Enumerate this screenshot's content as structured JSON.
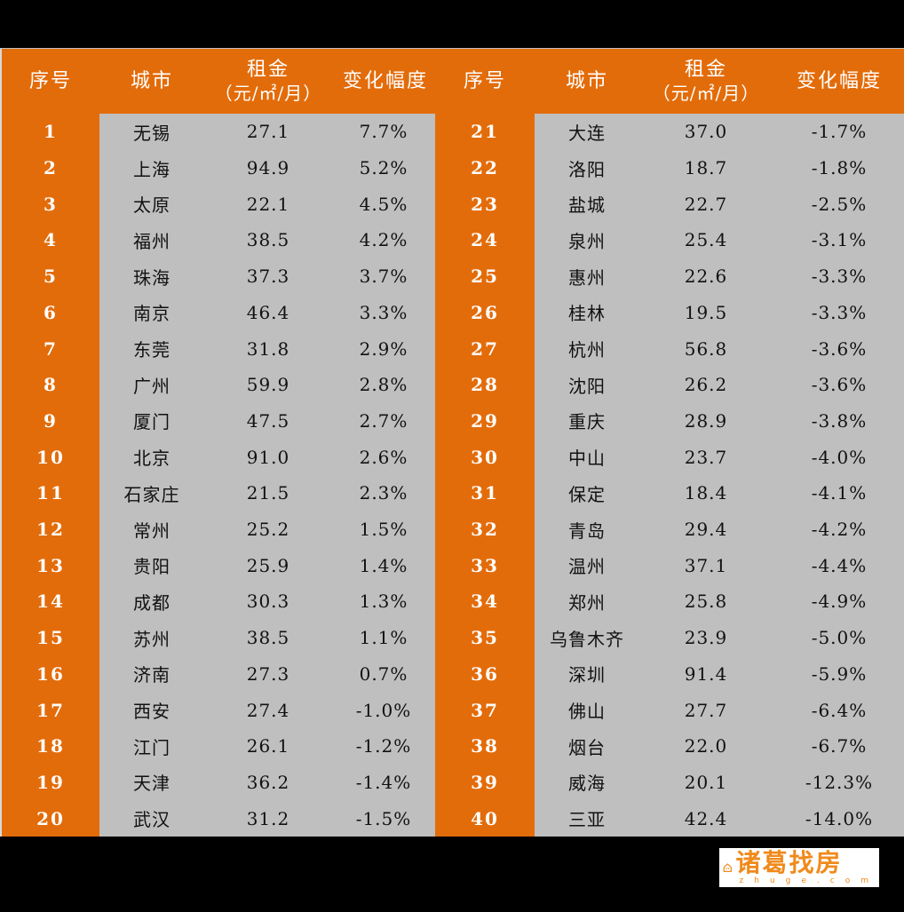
{
  "header": {
    "columns": [
      {
        "label": "序号"
      },
      {
        "label": "城市"
      },
      {
        "label": "租金",
        "sub": "（元/㎡/月）"
      },
      {
        "label": "变化幅度"
      }
    ]
  },
  "colors": {
    "accent": "#e36c0a",
    "cell_bg": "#bfbfbf",
    "background": "#000000"
  },
  "rows": [
    {
      "rank": "1",
      "city": "无锡",
      "rent": "27.1",
      "change": "7.7%"
    },
    {
      "rank": "2",
      "city": "上海",
      "rent": "94.9",
      "change": "5.2%"
    },
    {
      "rank": "3",
      "city": "太原",
      "rent": "22.1",
      "change": "4.5%"
    },
    {
      "rank": "4",
      "city": "福州",
      "rent": "38.5",
      "change": "4.2%"
    },
    {
      "rank": "5",
      "city": "珠海",
      "rent": "37.3",
      "change": "3.7%"
    },
    {
      "rank": "6",
      "city": "南京",
      "rent": "46.4",
      "change": "3.3%"
    },
    {
      "rank": "7",
      "city": "东莞",
      "rent": "31.8",
      "change": "2.9%"
    },
    {
      "rank": "8",
      "city": "广州",
      "rent": "59.9",
      "change": "2.8%"
    },
    {
      "rank": "9",
      "city": "厦门",
      "rent": "47.5",
      "change": "2.7%"
    },
    {
      "rank": "10",
      "city": "北京",
      "rent": "91.0",
      "change": "2.6%"
    },
    {
      "rank": "11",
      "city": "石家庄",
      "rent": "21.5",
      "change": "2.3%"
    },
    {
      "rank": "12",
      "city": "常州",
      "rent": "25.2",
      "change": "1.5%"
    },
    {
      "rank": "13",
      "city": "贵阳",
      "rent": "25.9",
      "change": "1.4%"
    },
    {
      "rank": "14",
      "city": "成都",
      "rent": "30.3",
      "change": "1.3%"
    },
    {
      "rank": "15",
      "city": "苏州",
      "rent": "38.5",
      "change": "1.1%"
    },
    {
      "rank": "16",
      "city": "济南",
      "rent": "27.3",
      "change": "0.7%"
    },
    {
      "rank": "17",
      "city": "西安",
      "rent": "27.4",
      "change": "-1.0%"
    },
    {
      "rank": "18",
      "city": "江门",
      "rent": "26.1",
      "change": "-1.2%"
    },
    {
      "rank": "19",
      "city": "天津",
      "rent": "36.2",
      "change": "-1.4%"
    },
    {
      "rank": "20",
      "city": "武汉",
      "rent": "31.2",
      "change": "-1.5%"
    },
    {
      "rank": "21",
      "city": "大连",
      "rent": "37.0",
      "change": "-1.7%"
    },
    {
      "rank": "22",
      "city": "洛阳",
      "rent": "18.7",
      "change": "-1.8%"
    },
    {
      "rank": "23",
      "city": "盐城",
      "rent": "22.7",
      "change": "-2.5%"
    },
    {
      "rank": "24",
      "city": "泉州",
      "rent": "25.4",
      "change": "-3.1%"
    },
    {
      "rank": "25",
      "city": "惠州",
      "rent": "22.6",
      "change": "-3.3%"
    },
    {
      "rank": "26",
      "city": "桂林",
      "rent": "19.5",
      "change": "-3.3%"
    },
    {
      "rank": "27",
      "city": "杭州",
      "rent": "56.8",
      "change": "-3.6%"
    },
    {
      "rank": "28",
      "city": "沈阳",
      "rent": "26.2",
      "change": "-3.6%"
    },
    {
      "rank": "29",
      "city": "重庆",
      "rent": "28.9",
      "change": "-3.8%"
    },
    {
      "rank": "30",
      "city": "中山",
      "rent": "23.7",
      "change": "-4.0%"
    },
    {
      "rank": "31",
      "city": "保定",
      "rent": "18.4",
      "change": "-4.1%"
    },
    {
      "rank": "32",
      "city": "青岛",
      "rent": "29.4",
      "change": "-4.2%"
    },
    {
      "rank": "33",
      "city": "温州",
      "rent": "37.1",
      "change": "-4.4%"
    },
    {
      "rank": "34",
      "city": "郑州",
      "rent": "25.8",
      "change": "-4.9%"
    },
    {
      "rank": "35",
      "city": "乌鲁木齐",
      "rent": "23.9",
      "change": "-5.0%"
    },
    {
      "rank": "36",
      "city": "深圳",
      "rent": "91.4",
      "change": "-5.9%"
    },
    {
      "rank": "37",
      "city": "佛山",
      "rent": "27.7",
      "change": "-6.4%"
    },
    {
      "rank": "38",
      "city": "烟台",
      "rent": "22.0",
      "change": "-6.7%"
    },
    {
      "rank": "39",
      "city": "威海",
      "rent": "20.1",
      "change": "-12.3%"
    },
    {
      "rank": "40",
      "city": "三亚",
      "rent": "42.4",
      "change": "-14.0%"
    }
  ],
  "logo": {
    "name": "诸葛找房",
    "domain": "zhuge.com",
    "icon": "house-icon"
  }
}
